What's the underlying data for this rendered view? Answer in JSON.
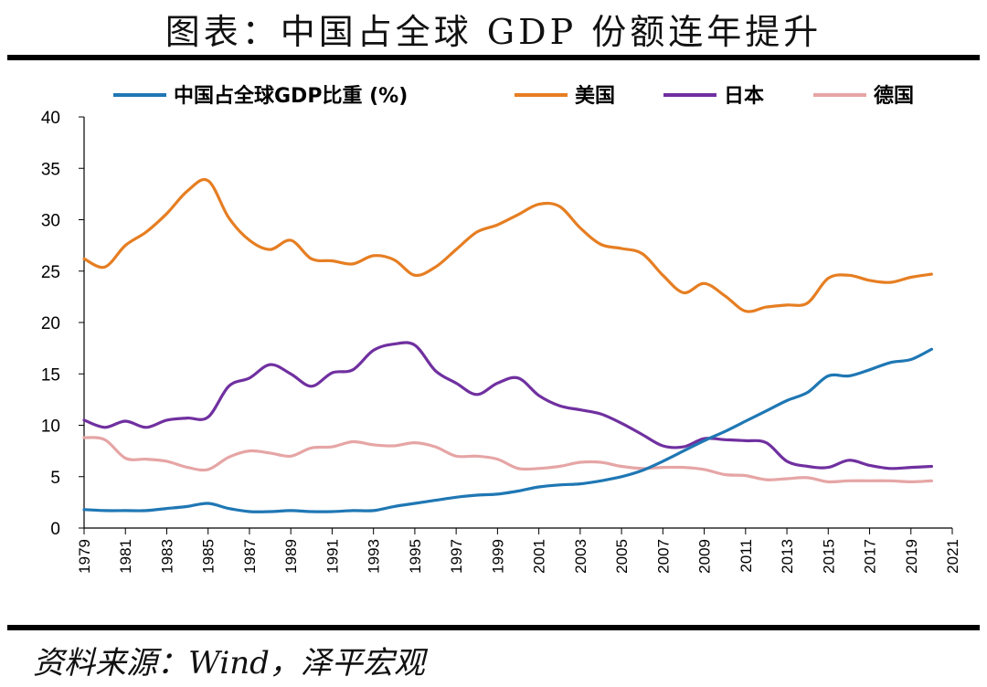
{
  "title": "图表：中国占全球 GDP 份额连年提升",
  "source": "资料来源：Wind，泽平宏观",
  "chart_data": {
    "type": "line",
    "title": "",
    "xlabel": "",
    "ylabel": "",
    "ylim": [
      0,
      40
    ],
    "yticks": [
      0,
      5,
      10,
      15,
      20,
      25,
      30,
      35,
      40
    ],
    "xlim": [
      1979,
      2021
    ],
    "xticks": [
      1979,
      1981,
      1983,
      1985,
      1987,
      1989,
      1991,
      1993,
      1995,
      1997,
      1999,
      2001,
      2003,
      2005,
      2007,
      2009,
      2011,
      2013,
      2015,
      2017,
      2019,
      2021
    ],
    "grid": false,
    "legend_position": "top",
    "x": [
      1979,
      1980,
      1981,
      1982,
      1983,
      1984,
      1985,
      1986,
      1987,
      1988,
      1989,
      1990,
      1991,
      1992,
      1993,
      1994,
      1995,
      1996,
      1997,
      1998,
      1999,
      2000,
      2001,
      2002,
      2003,
      2004,
      2005,
      2006,
      2007,
      2008,
      2009,
      2010,
      2011,
      2012,
      2013,
      2014,
      2015,
      2016,
      2017,
      2018,
      2019,
      2020
    ],
    "series": [
      {
        "name": "中国占全球GDP比重 (%)",
        "color": "#1f77b4",
        "values": [
          1.8,
          1.7,
          1.7,
          1.7,
          1.9,
          2.1,
          2.4,
          1.9,
          1.6,
          1.6,
          1.7,
          1.6,
          1.6,
          1.7,
          1.7,
          2.1,
          2.4,
          2.7,
          3.0,
          3.2,
          3.3,
          3.6,
          4.0,
          4.2,
          4.3,
          4.6,
          5.0,
          5.6,
          6.5,
          7.5,
          8.5,
          9.4,
          10.4,
          11.4,
          12.4,
          13.2,
          14.8,
          14.8,
          15.4,
          16.1,
          16.4,
          17.4
        ]
      },
      {
        "name": "美国",
        "color": "#e67e22",
        "values": [
          26.2,
          25.4,
          27.5,
          28.8,
          30.6,
          32.8,
          33.8,
          30.2,
          28.0,
          27.1,
          28.0,
          26.2,
          26.0,
          25.7,
          26.5,
          26.1,
          24.6,
          25.4,
          27.1,
          28.8,
          29.5,
          30.5,
          31.5,
          31.3,
          29.2,
          27.6,
          27.2,
          26.7,
          24.6,
          22.9,
          23.8,
          22.6,
          21.1,
          21.5,
          21.7,
          21.9,
          24.3,
          24.6,
          24.1,
          23.9,
          24.4,
          24.7
        ]
      },
      {
        "name": "日本",
        "color": "#7030a0",
        "values": [
          10.5,
          9.8,
          10.4,
          9.8,
          10.5,
          10.7,
          10.8,
          13.8,
          14.6,
          15.9,
          15.0,
          13.8,
          15.1,
          15.4,
          17.3,
          17.9,
          17.8,
          15.3,
          14.1,
          13.0,
          14.1,
          14.6,
          12.9,
          11.9,
          11.5,
          11.1,
          10.2,
          9.1,
          8.0,
          7.9,
          8.7,
          8.6,
          8.5,
          8.3,
          6.5,
          6.0,
          5.9,
          6.6,
          6.1,
          5.8,
          5.9,
          6.0
        ]
      },
      {
        "name": "德国",
        "color": "#e6a5a5",
        "values": [
          8.8,
          8.6,
          6.8,
          6.7,
          6.5,
          5.9,
          5.7,
          6.9,
          7.5,
          7.3,
          7.0,
          7.8,
          7.9,
          8.4,
          8.1,
          8.0,
          8.3,
          7.9,
          7.0,
          7.0,
          6.7,
          5.8,
          5.8,
          6.0,
          6.4,
          6.4,
          6.0,
          5.8,
          5.9,
          5.9,
          5.7,
          5.2,
          5.1,
          4.7,
          4.8,
          4.9,
          4.5,
          4.6,
          4.6,
          4.6,
          4.5,
          4.6
        ]
      }
    ]
  }
}
